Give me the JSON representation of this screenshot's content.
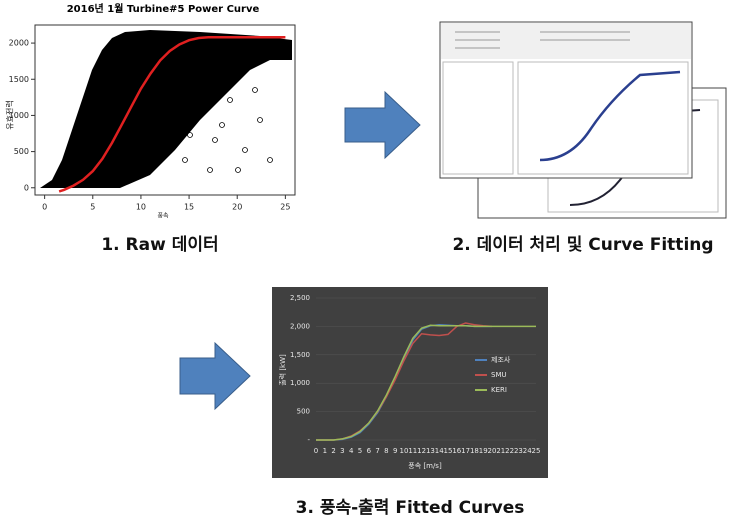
{
  "raw_chart": {
    "title": "2016년 1월 Turbine#5 Power Curve",
    "ylabel": "유효전력",
    "xlabel": "풍속",
    "xlim": [
      -1,
      26
    ],
    "ylim": [
      -100,
      2250
    ],
    "xticks": [
      0,
      5,
      10,
      15,
      20,
      25
    ],
    "yticks": [
      0,
      500,
      1000,
      1500,
      2000
    ],
    "fit": {
      "color": "#e02020",
      "x": [
        1.5,
        2,
        3,
        4,
        5,
        6,
        7,
        8,
        9,
        10,
        11,
        12,
        13,
        14,
        15,
        16,
        17,
        18,
        19,
        20,
        25
      ],
      "values": [
        -50,
        -30,
        30,
        110,
        230,
        400,
        620,
        870,
        1120,
        1370,
        1580,
        1760,
        1890,
        1980,
        2040,
        2070,
        2080,
        2080,
        2080,
        2080,
        2080
      ]
    }
  },
  "captions": [
    "1. Raw 데이터",
    "2. 데이터 처리 및 Curve Fitting",
    "3. 풍속-출력 Fitted Curves"
  ],
  "fitted_chart": {
    "type": "line",
    "ylabel": "출력 [kW]",
    "xlabel": "풍속 [m/s]",
    "categories": [
      0,
      1,
      2,
      3,
      4,
      5,
      6,
      7,
      8,
      9,
      10,
      11,
      12,
      13,
      14,
      15,
      16,
      17,
      18,
      19,
      20,
      21,
      22,
      23,
      24,
      25
    ],
    "ylim": [
      0,
      2500
    ],
    "yticks": [
      {
        "value": 0,
        "label": "-"
      },
      500,
      {
        "value": 1000,
        "label": "1,000"
      },
      {
        "value": 1500,
        "label": "1,500"
      },
      {
        "value": 2000,
        "label": "2,000"
      },
      {
        "value": 2500,
        "label": "2,500"
      }
    ],
    "series": [
      {
        "name": "제조사",
        "color": "#4f81bd",
        "values": [
          0,
          0,
          0,
          10,
          50,
          130,
          280,
          480,
          760,
          1100,
          1450,
          1760,
          1950,
          2010,
          2030,
          2020,
          2010,
          2010,
          2000,
          2000,
          2000,
          null,
          null,
          null,
          null,
          null
        ]
      },
      {
        "name": "SMU",
        "color": "#c0504d",
        "values": [
          0,
          0,
          0,
          20,
          70,
          160,
          300,
          500,
          760,
          1060,
          1400,
          1700,
          1870,
          1850,
          1840,
          1860,
          2000,
          2060,
          2030,
          2010,
          2000,
          null,
          null,
          null,
          null,
          null
        ]
      },
      {
        "name": "KERI",
        "color": "#9bbb59",
        "values": [
          0,
          0,
          0,
          20,
          60,
          150,
          300,
          510,
          790,
          1120,
          1470,
          1790,
          1970,
          2020,
          2010,
          2010,
          2010,
          2010,
          2000,
          2000,
          2000,
          2000,
          2000,
          2000,
          2000,
          2000
        ]
      }
    ]
  }
}
